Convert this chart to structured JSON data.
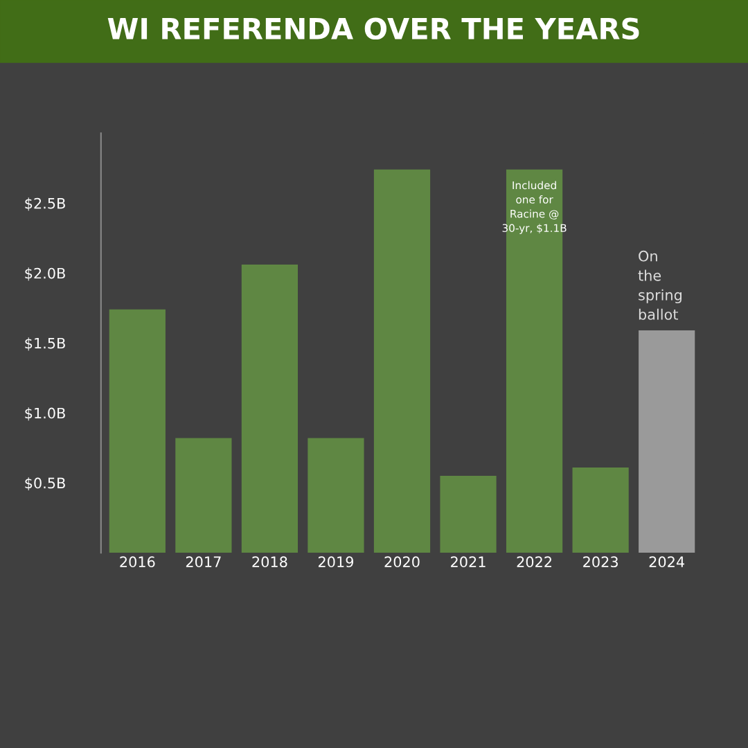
{
  "chart_data": {
    "type": "bar",
    "title": "WI REFERENDA OVER THE YEARS",
    "categories": [
      "2016",
      "2017",
      "2018",
      "2019",
      "2020",
      "2021",
      "2022",
      "2023",
      "2024"
    ],
    "values": [
      1.74,
      0.82,
      2.06,
      0.82,
      2.74,
      0.55,
      2.74,
      0.61,
      1.59
    ],
    "colors": [
      "#5f8743",
      "#5f8743",
      "#5f8743",
      "#5f8743",
      "#5f8743",
      "#5f8743",
      "#5f8743",
      "#5f8743",
      "#9a9a9a"
    ],
    "yticks": [
      {
        "value": 0.5,
        "label": "$0.5B"
      },
      {
        "value": 1.0,
        "label": "$1.0B"
      },
      {
        "value": 1.5,
        "label": "$1.5B"
      },
      {
        "value": 2.0,
        "label": "$2.0B"
      },
      {
        "value": 2.5,
        "label": "$2.5B"
      }
    ],
    "ylim": [
      0,
      3.0
    ],
    "grid": false,
    "legend": false,
    "annotations": [
      {
        "text": "Included\none for\nRacine @\n30-yr, $1.1B",
        "x": "2022",
        "y": 2.74
      },
      {
        "text": "On\nthe\nspring\nballot",
        "x": "2024",
        "y": 1.59
      }
    ]
  }
}
